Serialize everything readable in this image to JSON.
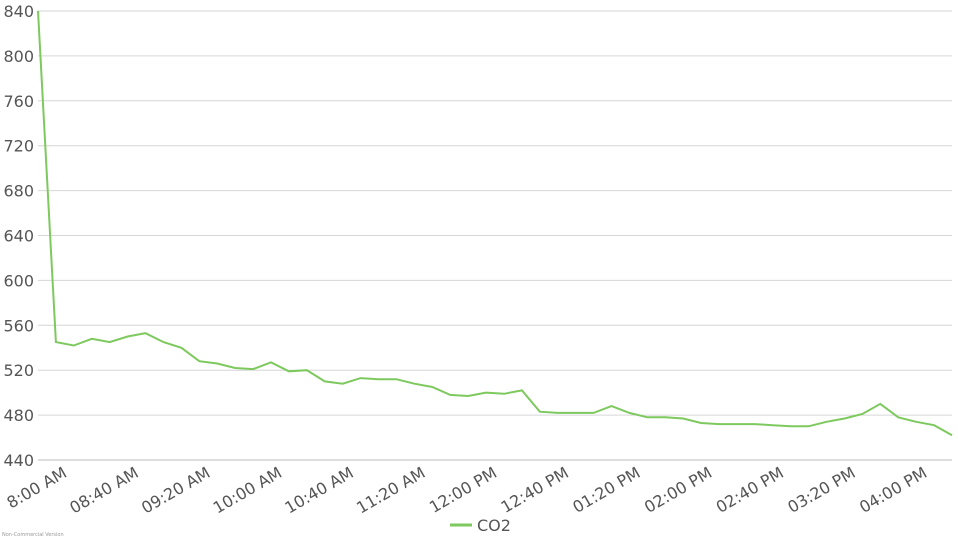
{
  "chart_data": {
    "type": "line",
    "categories": [
      "8:00 AM",
      null,
      null,
      null,
      "08:40 AM",
      null,
      null,
      null,
      "09:20 AM",
      null,
      null,
      null,
      "10:00 AM",
      null,
      null,
      null,
      "10:40 AM",
      null,
      null,
      null,
      "11:20 AM",
      null,
      null,
      null,
      "12:00 PM",
      null,
      null,
      null,
      "12:40 PM",
      null,
      null,
      null,
      "01:20 PM",
      null,
      null,
      null,
      "02:00 PM",
      null,
      null,
      null,
      "02:40 PM",
      null,
      null,
      null,
      "03:20 PM",
      null,
      null,
      null,
      "04:00 PM",
      null,
      null,
      null
    ],
    "series": [
      {
        "name": "CO2",
        "color": "#7dc95e",
        "values": [
          840,
          545,
          542,
          548,
          545,
          550,
          553,
          545,
          540,
          528,
          526,
          522,
          521,
          527,
          519,
          520,
          510,
          508,
          513,
          512,
          512,
          508,
          505,
          498,
          497,
          500,
          499,
          502,
          483,
          482,
          482,
          482,
          488,
          482,
          478,
          478,
          477,
          473,
          472,
          472,
          472,
          471,
          470,
          470,
          474,
          477,
          481,
          490,
          478,
          474,
          471,
          462
        ]
      }
    ],
    "ylim": [
      440,
      840
    ],
    "yticks": [
      440,
      480,
      520,
      560,
      600,
      640,
      680,
      720,
      760,
      800,
      840
    ],
    "grid": true,
    "legend": "bottom",
    "watermark": "Non-Commercial Version"
  }
}
